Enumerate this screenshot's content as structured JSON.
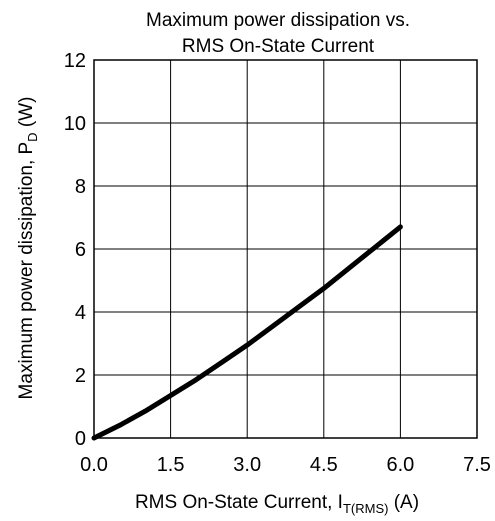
{
  "chart_data": {
    "type": "line",
    "title_lines": [
      "Maximum power dissipation vs.",
      "RMS On-State Current"
    ],
    "xlabel": {
      "text": "RMS On-State Current, I",
      "subscript": "T(RMS)",
      "suffix": " (A)"
    },
    "ylabel": {
      "text": "Maximum power dissipation, P",
      "subscript": "D",
      "suffix": " (W)"
    },
    "xlim": [
      0,
      7.5
    ],
    "ylim": [
      0,
      12
    ],
    "x_ticks": [
      "0.0",
      "1.5",
      "3.0",
      "4.5",
      "6.0",
      "7.5"
    ],
    "y_ticks": [
      "0",
      "2",
      "4",
      "6",
      "8",
      "10",
      "12"
    ],
    "x_tick_values": [
      0,
      1.5,
      3.0,
      4.5,
      6.0,
      7.5
    ],
    "y_tick_values": [
      0,
      2,
      4,
      6,
      8,
      10,
      12
    ],
    "grid": true,
    "series": [
      {
        "color": "#000000",
        "x": [
          0,
          0.5,
          1.0,
          1.5,
          2.0,
          2.5,
          3.0,
          3.5,
          4.0,
          4.5,
          5.0,
          5.5,
          6.0
        ],
        "y": [
          0,
          0.4,
          0.85,
          1.35,
          1.85,
          2.4,
          2.95,
          3.55,
          4.15,
          4.75,
          5.4,
          6.05,
          6.7
        ]
      }
    ]
  }
}
